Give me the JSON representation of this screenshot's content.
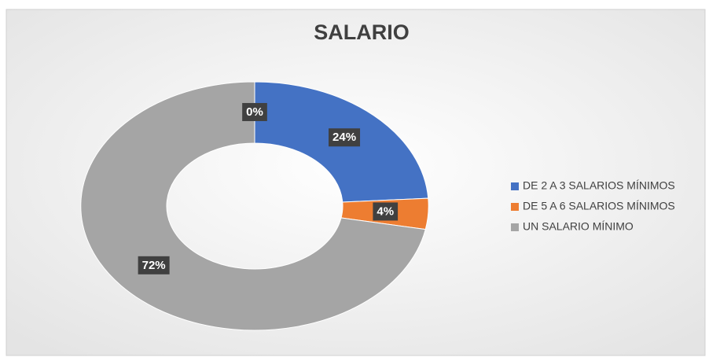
{
  "chart_data": {
    "type": "donut",
    "title": "SALARIO",
    "categories": [
      "DE 2 A 3 SALARIOS MÍNIMOS",
      "DE 5 A 6 SALARIOS MÍNIMOS",
      "UN SALARIO MÍNIMO",
      null
    ],
    "values": [
      24,
      4,
      72,
      0
    ],
    "value_labels": [
      "24%",
      "4%",
      "72%",
      "0%"
    ],
    "colors": [
      "#4472c4",
      "#ed7d31",
      "#a5a5a5",
      "#ffc000"
    ],
    "legend": "right"
  }
}
